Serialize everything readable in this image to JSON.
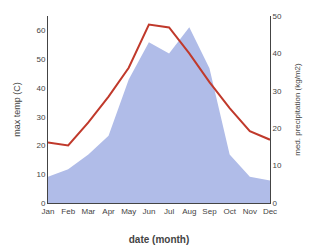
{
  "chart_data": {
    "type": "line",
    "categories": [
      "Jan",
      "Feb",
      "Mar",
      "Apr",
      "May",
      "Jun",
      "Jul",
      "Aug",
      "Sep",
      "Oct",
      "Nov",
      "Dec"
    ],
    "series": [
      {
        "type": "area",
        "axis": "y2",
        "color": "#b0bce8",
        "values": [
          7,
          9,
          13,
          18,
          33,
          43,
          40,
          47,
          36,
          13,
          7,
          6
        ]
      },
      {
        "type": "line",
        "color": "#c0392b",
        "values": [
          21,
          20,
          28,
          37,
          47,
          62,
          61,
          52,
          42,
          33,
          25,
          22
        ]
      }
    ],
    "xlabel": "date (month)",
    "ylabel": "max temp (C)",
    "y2label": "med. precipitation (kg/m2)",
    "ylim": [
      0,
      65
    ],
    "yticks": [
      0,
      10,
      20,
      30,
      40,
      50,
      60
    ],
    "y2lim": [
      0,
      50
    ],
    "y2ticks": [
      0,
      10,
      20,
      30,
      40,
      50
    ],
    "grid": false
  }
}
